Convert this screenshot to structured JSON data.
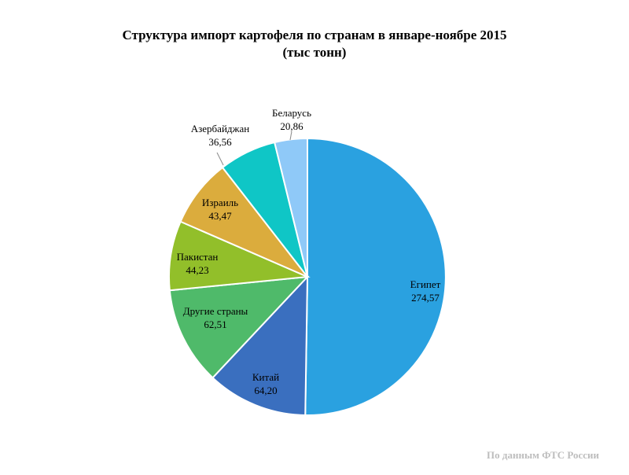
{
  "chart_data": {
    "type": "pie",
    "title": "Структура импорт картофеля по странам в январе-ноябре 2015",
    "subtitle": "(тыс тонн)",
    "slices": [
      {
        "label": "Египет",
        "value_text": "274,57",
        "value": 274.57,
        "color": "#2aa1e0"
      },
      {
        "label": "Китай",
        "value_text": "64,20",
        "value": 64.2,
        "color": "#3a6fbf"
      },
      {
        "label": "Другие страны",
        "value_text": "62,51",
        "value": 62.51,
        "color": "#4fba6a"
      },
      {
        "label": "Пакистан",
        "value_text": "44,23",
        "value": 44.23,
        "color": "#92bf2a"
      },
      {
        "label": "Израиль",
        "value_text": "43,47",
        "value": 43.47,
        "color": "#dbac3d"
      },
      {
        "label": "Азербайджан",
        "value_text": "36,56",
        "value": 36.56,
        "color": "#0fc6c6"
      },
      {
        "label": "Беларусь",
        "value_text": "20,86",
        "value": 20.86,
        "color": "#8fc9f8"
      }
    ]
  },
  "source": "По данным ФТС России"
}
